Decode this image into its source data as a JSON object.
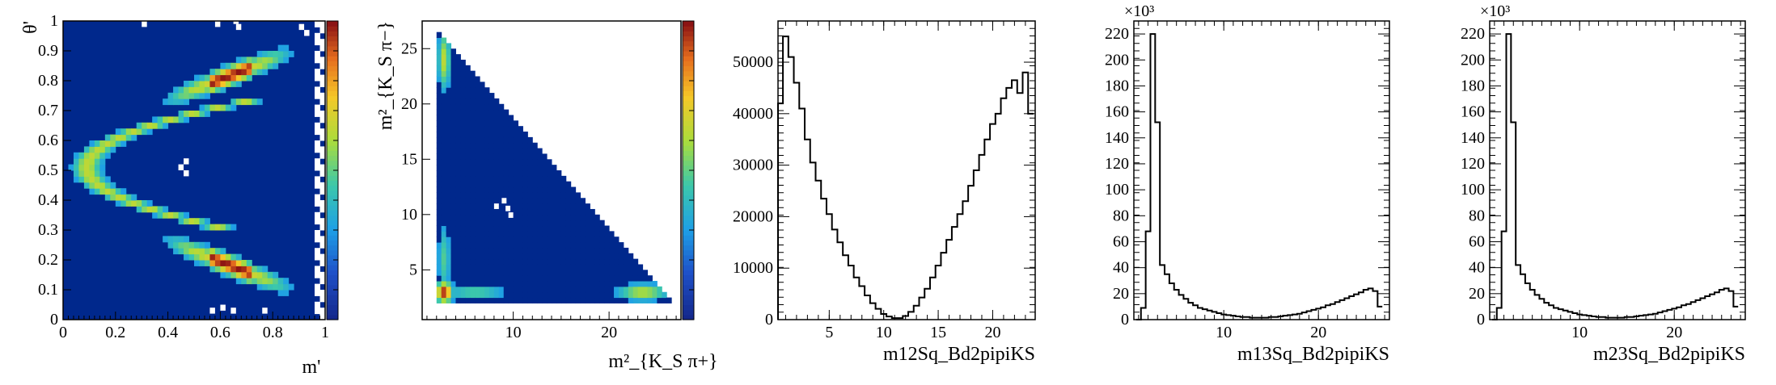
{
  "chart_data": [
    {
      "type": "heatmap",
      "id": "p1",
      "title": "",
      "xlabel": "m'",
      "ylabel": "θ'",
      "xlim": [
        0,
        1
      ],
      "ylim": [
        0,
        1
      ],
      "xticks": [
        "0",
        "0.2",
        "0.4",
        "0.6",
        "0.8",
        "1"
      ],
      "yticks": [
        "0",
        "0.1",
        "0.2",
        "0.3",
        "0.4",
        "0.5",
        "0.6",
        "0.7",
        "0.8",
        "0.9",
        "1"
      ],
      "colorbar": true,
      "blobs": [
        {
          "shape": "arc_left",
          "x_range": [
            0.08,
            0.3
          ],
          "y_range": [
            0.3,
            0.72
          ],
          "peak": 0.55
        },
        {
          "shape": "band",
          "x_range": [
            0.38,
            0.88
          ],
          "y_range": [
            0.72,
            0.88
          ],
          "peak": 1.0
        },
        {
          "shape": "band",
          "x_range": [
            0.38,
            0.88
          ],
          "y_range": [
            0.12,
            0.28
          ],
          "peak": 1.0
        }
      ],
      "empty_regions": "right edge x>0.95 and scattered cells at top/bottom"
    },
    {
      "type": "heatmap",
      "id": "p2",
      "title": "",
      "xlabel": "m²_{K_S π+}",
      "ylabel": "m²_{K_S π−}",
      "xlim": [
        0.5,
        27.5
      ],
      "ylim": [
        0.5,
        27.5
      ],
      "xticks": [
        "10",
        "20"
      ],
      "yticks": [
        "5",
        "10",
        "15",
        "20",
        "25"
      ],
      "colorbar": true,
      "kinematic_boundary": "triangle, diagonal edge from (2,27) to (27,2)",
      "hotspots": [
        {
          "x": 2.8,
          "y": 3.0,
          "peak": 1.0,
          "note": "bottom-left corner"
        },
        {
          "x": 23.5,
          "y": 3.0,
          "peak": 0.55,
          "note": "bottom-right band"
        },
        {
          "x": 2.8,
          "y": 24.0,
          "peak": 0.55,
          "note": "top-left band"
        }
      ]
    },
    {
      "type": "line",
      "id": "p3",
      "title": "",
      "xlabel": "m12Sq_Bd2pipiKS",
      "ylabel": "",
      "xlim": [
        0.3,
        23.9
      ],
      "ylim": [
        0,
        58000
      ],
      "xticks": [
        "5",
        "10",
        "15",
        "20"
      ],
      "yticks": [
        "0",
        "10000",
        "20000",
        "30000",
        "40000",
        "50000"
      ],
      "style": "step histogram",
      "x": [
        0.5,
        1.0,
        1.5,
        2.0,
        2.5,
        3.0,
        3.5,
        4.0,
        4.5,
        5.0,
        5.5,
        6.0,
        6.5,
        7.0,
        7.5,
        8.0,
        8.5,
        9.0,
        9.5,
        10.0,
        10.5,
        11.0,
        11.5,
        12.0,
        12.5,
        13.0,
        13.5,
        14.0,
        14.5,
        15.0,
        15.5,
        16.0,
        16.5,
        17.0,
        17.5,
        18.0,
        18.5,
        19.0,
        19.5,
        20.0,
        20.5,
        21.0,
        21.5,
        22.0,
        22.5,
        23.0,
        23.5
      ],
      "y": [
        42000,
        55000,
        51000,
        46000,
        41000,
        35000,
        30500,
        27000,
        23500,
        20500,
        17500,
        15000,
        12500,
        10500,
        8200,
        6500,
        4700,
        3200,
        2100,
        1100,
        600,
        300,
        300,
        700,
        1500,
        2700,
        4300,
        6000,
        8200,
        10500,
        13000,
        15500,
        18000,
        20500,
        23000,
        26000,
        29000,
        32000,
        35000,
        38000,
        40000,
        43000,
        45000,
        46500,
        44000,
        48000,
        40000
      ]
    },
    {
      "type": "line",
      "id": "p4",
      "title": "",
      "xlabel": "m13Sq_Bd2pipiKS",
      "ylabel": "",
      "xlim": [
        0.5,
        27.5
      ],
      "ylim": [
        0,
        230
      ],
      "y_unit_multiplier": "×10³",
      "xticks": [
        "10",
        "20"
      ],
      "yticks": [
        "0",
        "20",
        "40",
        "60",
        "80",
        "100",
        "120",
        "140",
        "160",
        "180",
        "200",
        "220"
      ],
      "style": "step histogram",
      "x": [
        1,
        1.5,
        2,
        2.5,
        3,
        3.5,
        4,
        4.5,
        5,
        5.5,
        6,
        6.5,
        7,
        7.5,
        8,
        8.5,
        9,
        9.5,
        10,
        10.5,
        11,
        11.5,
        12,
        12.5,
        13,
        13.5,
        14,
        14.5,
        15,
        15.5,
        16,
        16.5,
        17,
        17.5,
        18,
        18.5,
        19,
        19.5,
        20,
        20.5,
        21,
        21.5,
        22,
        22.5,
        23,
        23.5,
        24,
        24.5,
        25,
        25.5,
        26,
        26.5
      ],
      "y": [
        0,
        9,
        68,
        220,
        152,
        42,
        35,
        28,
        23,
        19,
        16,
        13,
        11,
        9,
        8,
        7,
        6,
        5,
        4,
        3.5,
        3,
        2.5,
        2,
        2,
        1.5,
        1.5,
        1.5,
        1.5,
        2,
        2,
        2.5,
        3,
        3.5,
        4,
        4.5,
        5.5,
        6.5,
        7.5,
        8.5,
        9.5,
        11,
        12,
        13.5,
        15,
        16.5,
        18,
        19.5,
        21,
        23,
        24,
        22,
        10
      ]
    },
    {
      "type": "line",
      "id": "p5",
      "title": "",
      "xlabel": "m23Sq_Bd2pipiKS",
      "ylabel": "",
      "xlim": [
        0.5,
        27.5
      ],
      "ylim": [
        0,
        230
      ],
      "y_unit_multiplier": "×10³",
      "xticks": [
        "10",
        "20"
      ],
      "yticks": [
        "0",
        "20",
        "40",
        "60",
        "80",
        "100",
        "120",
        "140",
        "160",
        "180",
        "200",
        "220"
      ],
      "style": "step histogram",
      "x": [
        1,
        1.5,
        2,
        2.5,
        3,
        3.5,
        4,
        4.5,
        5,
        5.5,
        6,
        6.5,
        7,
        7.5,
        8,
        8.5,
        9,
        9.5,
        10,
        10.5,
        11,
        11.5,
        12,
        12.5,
        13,
        13.5,
        14,
        14.5,
        15,
        15.5,
        16,
        16.5,
        17,
        17.5,
        18,
        18.5,
        19,
        19.5,
        20,
        20.5,
        21,
        21.5,
        22,
        22.5,
        23,
        23.5,
        24,
        24.5,
        25,
        25.5,
        26,
        26.5
      ],
      "y": [
        0,
        9,
        68,
        220,
        152,
        42,
        35,
        28,
        23,
        19,
        16,
        13,
        11,
        9,
        8,
        7,
        6,
        5,
        4,
        3.5,
        3,
        2.5,
        2,
        2,
        1.5,
        1.5,
        1.5,
        1.5,
        2,
        2,
        2.5,
        3,
        3.5,
        4,
        4.5,
        5.5,
        6.5,
        7.5,
        8.5,
        9.5,
        11,
        12,
        13.5,
        15,
        16.5,
        18,
        19.5,
        21,
        23,
        24,
        22,
        10
      ]
    }
  ]
}
